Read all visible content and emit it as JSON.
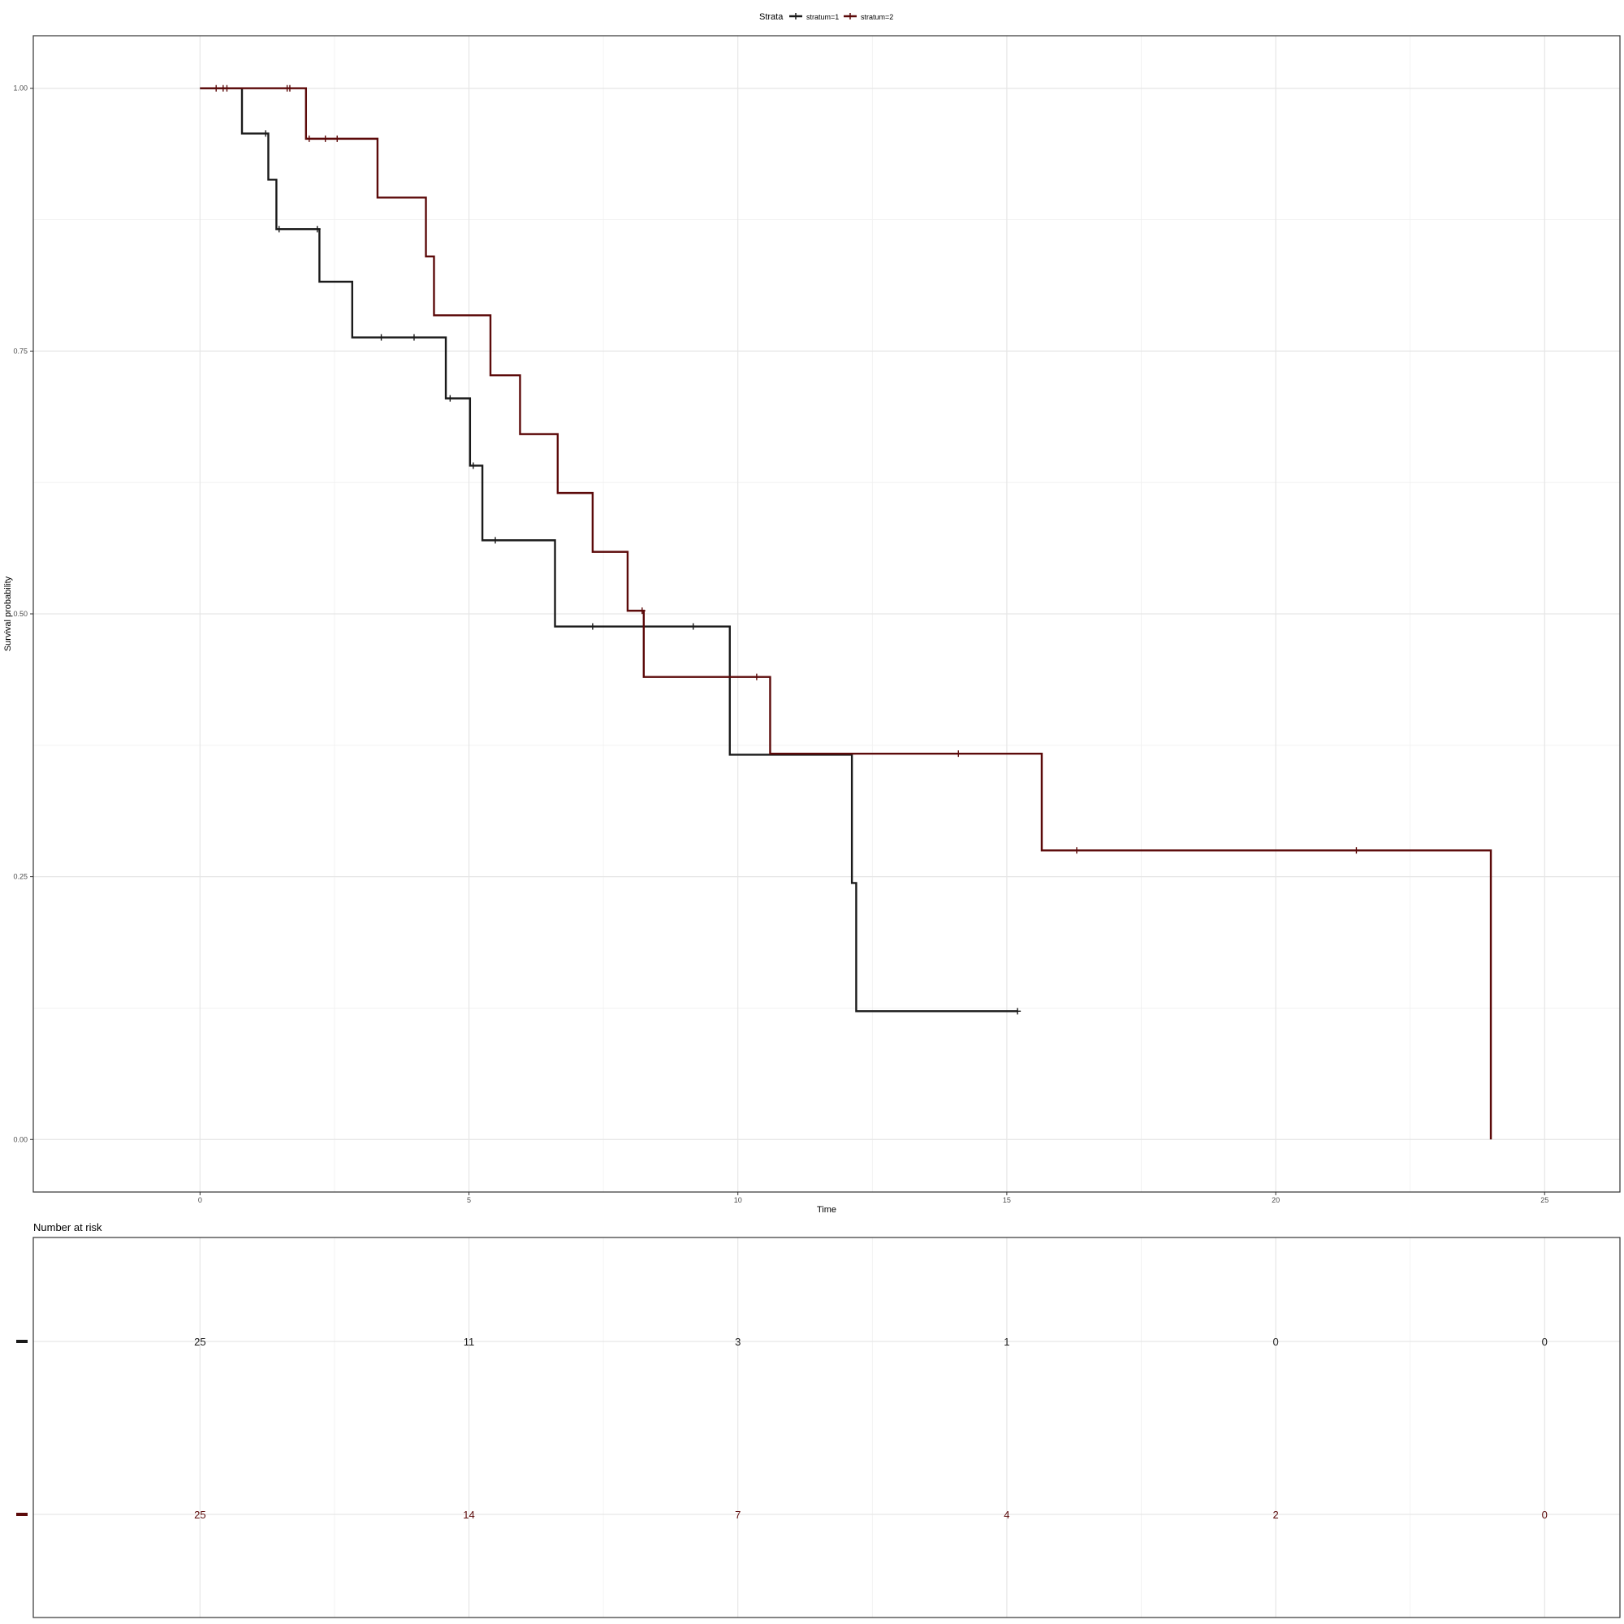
{
  "chart_data": {
    "type": "line",
    "legend": {
      "title": "Strata",
      "position": "top"
    },
    "xlabel": "Time",
    "ylabel": "Survival probability",
    "xlim": [
      -3.1,
      26.4
    ],
    "ylim": [
      -0.05,
      1.05
    ],
    "xticks": [
      0,
      5,
      10,
      15,
      20,
      25
    ],
    "xtick_labels": [
      "0",
      "5",
      "10",
      "15",
      "20",
      "25"
    ],
    "yticks": [
      0,
      0.25,
      0.5,
      0.75,
      1.0
    ],
    "ytick_labels": [
      "0.00",
      "0.25",
      "0.50",
      "0.75",
      "1.00"
    ],
    "grid": true,
    "series": [
      {
        "name": "stratum=1",
        "color": "#1a1a1a",
        "steps": [
          [
            0,
            1.0
          ],
          [
            0.78,
            0.957
          ],
          [
            1.27,
            0.913
          ],
          [
            1.42,
            0.866
          ],
          [
            2.22,
            0.816
          ],
          [
            2.83,
            0.763
          ],
          [
            4.57,
            0.705
          ],
          [
            5.02,
            0.641
          ],
          [
            5.25,
            0.57
          ],
          [
            6.6,
            0.488
          ],
          [
            9.85,
            0.366
          ],
          [
            12.12,
            0.244
          ],
          [
            12.2,
            0.122
          ],
          [
            15.2,
            0.122
          ]
        ],
        "censored": [
          [
            1.22,
            0.957
          ],
          [
            1.47,
            0.866
          ],
          [
            2.18,
            0.866
          ],
          [
            3.37,
            0.763
          ],
          [
            3.98,
            0.763
          ],
          [
            4.65,
            0.705
          ],
          [
            5.08,
            0.641
          ],
          [
            5.49,
            0.57
          ],
          [
            7.3,
            0.488
          ],
          [
            9.17,
            0.488
          ],
          [
            15.2,
            0.122
          ]
        ]
      },
      {
        "name": "stratum=2",
        "color": "#5c0a0a",
        "steps": [
          [
            0,
            1.0
          ],
          [
            1.97,
            0.952
          ],
          [
            3.3,
            0.896
          ],
          [
            4.2,
            0.84
          ],
          [
            4.35,
            0.784
          ],
          [
            5.4,
            0.727
          ],
          [
            5.95,
            0.671
          ],
          [
            6.65,
            0.615
          ],
          [
            7.3,
            0.559
          ],
          [
            7.95,
            0.503
          ],
          [
            8.25,
            0.44
          ],
          [
            10.6,
            0.367
          ],
          [
            15.65,
            0.275
          ],
          [
            24.0,
            0.0
          ]
        ],
        "censored": [
          [
            0.3,
            1.0
          ],
          [
            0.43,
            1.0
          ],
          [
            0.5,
            1.0
          ],
          [
            1.62,
            1.0
          ],
          [
            1.67,
            1.0
          ],
          [
            2.03,
            0.952
          ],
          [
            2.33,
            0.952
          ],
          [
            2.55,
            0.952
          ],
          [
            8.22,
            0.503
          ],
          [
            10.35,
            0.44
          ],
          [
            14.1,
            0.367
          ],
          [
            16.3,
            0.275
          ],
          [
            21.5,
            0.275
          ]
        ]
      }
    ],
    "risk_table": {
      "title": "Number at risk",
      "times": [
        0,
        5,
        10,
        15,
        20,
        25
      ],
      "rows": [
        {
          "strata": "stratum=1",
          "color": "#1a1a1a",
          "values": [
            "25",
            "11",
            "3",
            "1",
            "0",
            "0"
          ]
        },
        {
          "strata": "stratum=2",
          "color": "#5c0a0a",
          "values": [
            "25",
            "14",
            "7",
            "4",
            "2",
            "0"
          ]
        }
      ]
    }
  }
}
